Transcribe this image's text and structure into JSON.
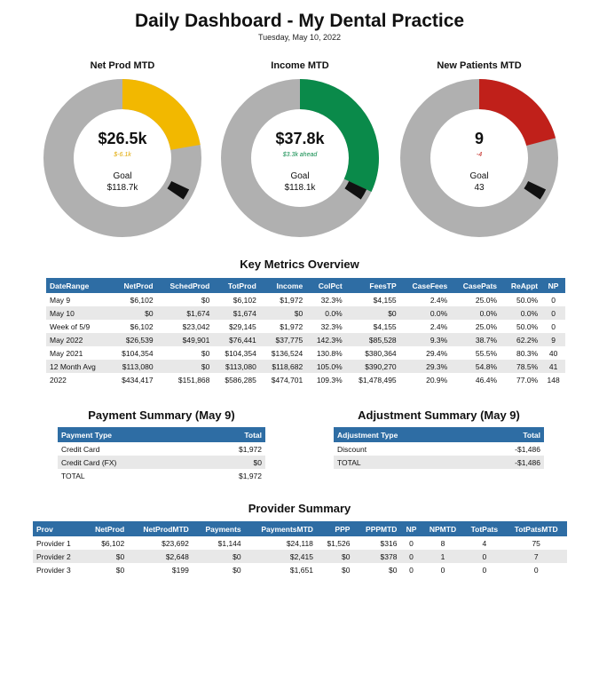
{
  "header": {
    "title": "Daily Dashboard - My Dental Practice",
    "date": "Tuesday, May 10, 2022"
  },
  "donuts": [
    {
      "title": "Net Prod MTD",
      "value": "$26.5k",
      "delta": "$-6.1k",
      "goal_label": "Goal",
      "goal": "$118.7k",
      "fraction": 0.223,
      "color": "#f2b800",
      "delta_color": "#e0a800"
    },
    {
      "title": "Income MTD",
      "value": "$37.8k",
      "delta": "$3.3k ahead",
      "goal_label": "Goal",
      "goal": "$118.1k",
      "fraction": 0.32,
      "color": "#0a8a4a",
      "delta_color": "#0a8a4a"
    },
    {
      "title": "New Patients MTD",
      "value": "9",
      "delta": "-4",
      "goal_label": "Goal",
      "goal": "43",
      "fraction": 0.209,
      "color": "#c0201a",
      "delta_color": "#c0201a"
    }
  ],
  "key_metrics": {
    "title": "Key Metrics Overview",
    "columns": [
      "DateRange",
      "NetProd",
      "SchedProd",
      "TotProd",
      "Income",
      "ColPct",
      "FeesTP",
      "CaseFees",
      "CasePats",
      "ReAppt",
      "NP"
    ],
    "rows": [
      [
        "May 9",
        "$6,102",
        "$0",
        "$6,102",
        "$1,972",
        "32.3%",
        "$4,155",
        "2.4%",
        "25.0%",
        "50.0%",
        "0"
      ],
      [
        "May 10",
        "$0",
        "$1,674",
        "$1,674",
        "$0",
        "0.0%",
        "$0",
        "0.0%",
        "0.0%",
        "0.0%",
        "0"
      ],
      [
        "Week of 5/9",
        "$6,102",
        "$23,042",
        "$29,145",
        "$1,972",
        "32.3%",
        "$4,155",
        "2.4%",
        "25.0%",
        "50.0%",
        "0"
      ],
      [
        "May 2022",
        "$26,539",
        "$49,901",
        "$76,441",
        "$37,775",
        "142.3%",
        "$85,528",
        "9.3%",
        "38.7%",
        "62.2%",
        "9"
      ],
      [
        "May 2021",
        "$104,354",
        "$0",
        "$104,354",
        "$136,524",
        "130.8%",
        "$380,364",
        "29.4%",
        "55.5%",
        "80.3%",
        "40"
      ],
      [
        "12 Month Avg",
        "$113,080",
        "$0",
        "$113,080",
        "$118,682",
        "105.0%",
        "$390,270",
        "29.3%",
        "54.8%",
        "78.5%",
        "41"
      ],
      [
        "2022",
        "$434,417",
        "$151,868",
        "$586,285",
        "$474,701",
        "109.3%",
        "$1,478,495",
        "20.9%",
        "46.4%",
        "77.0%",
        "148"
      ]
    ]
  },
  "payment_summary": {
    "title": "Payment Summary (May 9)",
    "columns": [
      "Payment Type",
      "Total"
    ],
    "rows": [
      [
        "Credit Card",
        "$1,972"
      ],
      [
        "Credit Card (FX)",
        "$0"
      ],
      [
        "TOTAL",
        "$1,972"
      ]
    ]
  },
  "adjustment_summary": {
    "title": "Adjustment Summary (May 9)",
    "columns": [
      "Adjustment Type",
      "Total"
    ],
    "rows": [
      [
        "Discount",
        "-$1,486"
      ],
      [
        "TOTAL",
        "-$1,486"
      ]
    ]
  },
  "provider_summary": {
    "title": "Provider Summary",
    "columns": [
      "Prov",
      "NetProd",
      "NetProdMTD",
      "Payments",
      "PaymentsMTD",
      "PPP",
      "PPPMTD",
      "NP",
      "NPMTD",
      "TotPats",
      "TotPatsMTD"
    ],
    "rows": [
      [
        "Provider 1",
        "$6,102",
        "$23,692",
        "$1,144",
        "$24,118",
        "$1,526",
        "$316",
        "0",
        "8",
        "4",
        "75"
      ],
      [
        "Provider 2",
        "$0",
        "$2,648",
        "$0",
        "$2,415",
        "$0",
        "$378",
        "0",
        "1",
        "0",
        "7"
      ],
      [
        "Provider 3",
        "$0",
        "$199",
        "$0",
        "$1,651",
        "$0",
        "$0",
        "0",
        "0",
        "0",
        "0"
      ]
    ]
  }
}
